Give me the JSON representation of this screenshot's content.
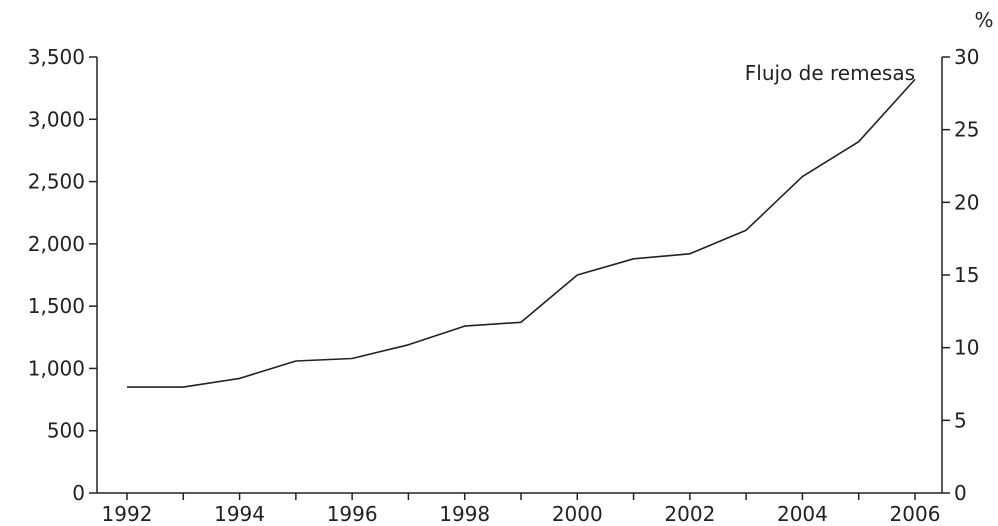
{
  "chart_data": {
    "type": "line",
    "title": "",
    "xlabel": "",
    "ylabel": "",
    "y2label": "%",
    "x": [
      1992,
      1993,
      1994,
      1995,
      1996,
      1997,
      1998,
      1999,
      2000,
      2001,
      2002,
      2003,
      2004,
      2005,
      2006
    ],
    "x_ticks": [
      "1992",
      "1994",
      "1996",
      "1998",
      "2000",
      "2002",
      "2004",
      "2006"
    ],
    "ylim": [
      0,
      3500
    ],
    "y_ticks": [
      "0",
      "500",
      "1,000",
      "1,500",
      "2,000",
      "2,500",
      "3,000",
      "3,500"
    ],
    "y2lim": [
      0,
      30
    ],
    "y2_ticks": [
      "0",
      "5",
      "10",
      "15",
      "20",
      "25",
      "30"
    ],
    "grid": false,
    "series": [
      {
        "name": "Flujo de remesas",
        "axis": "left",
        "values": [
          850,
          850,
          920,
          1060,
          1080,
          1190,
          1340,
          1370,
          1750,
          1880,
          1920,
          2110,
          2540,
          2820,
          3320
        ]
      }
    ],
    "annotations": [
      {
        "text": "Flujo de remesas"
      }
    ]
  }
}
